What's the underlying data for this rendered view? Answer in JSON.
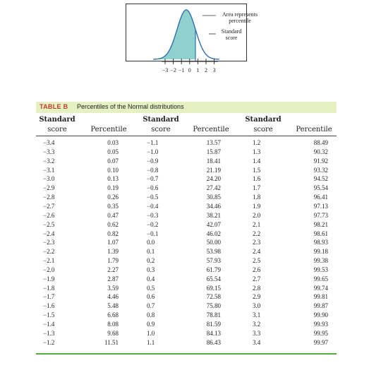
{
  "figure": {
    "annotations": {
      "percentile": [
        "Area represents",
        "percentile"
      ],
      "standard_score": [
        "Standard",
        "score"
      ]
    },
    "tick_labels": [
      "−3",
      "−2",
      "−1",
      "0",
      "1",
      "2",
      "3"
    ],
    "standard_score_marker": 1,
    "colors": {
      "shaded_area": "#8fd1cd",
      "curve": "#2e6fb0",
      "frame": "#333333"
    }
  },
  "table": {
    "label": "TABLE B",
    "title": "Percentiles of the Normal distributions",
    "header_top": "Standard",
    "header_score": "score",
    "header_percentile": "Percentile",
    "colors": {
      "caption_bg": "#e6f0c3",
      "label": "#c0392b",
      "bottom_rule": "#5daa3c"
    },
    "columns": [
      {
        "scores": [
          "−3.4",
          "−3.3",
          "−3.2",
          "−3.1",
          "−3.0",
          "−2.9",
          "−2.8",
          "−2.7",
          "−2.6",
          "−2.5",
          "−2.4",
          "−2.3",
          "−2.2",
          "−2.1",
          "−2.0",
          "−1.9",
          "−1.8",
          "−1.7",
          "−1.6",
          "−1.5",
          "−1.4",
          "−1.3",
          "−1.2"
        ],
        "percentiles": [
          "0.03",
          "0.05",
          "0.07",
          "0.10",
          "0.13",
          "0.19",
          "0.26",
          "0.35",
          "0.47",
          "0.62",
          "0.82",
          "1.07",
          "1.39",
          "1.79",
          "2.27",
          "2.87",
          "3.59",
          "4.46",
          "5.48",
          "6.68",
          "8.08",
          "9.68",
          "11.51"
        ]
      },
      {
        "scores": [
          "−1.1",
          "−1.0",
          "−0.9",
          "−0.8",
          "−0.7",
          "−0.6",
          "−0.5",
          "−0.4",
          "−0.3",
          "−0.2",
          "−0.1",
          "0.0",
          "0.1",
          "0.2",
          "0.3",
          "0.4",
          "0.5",
          "0.6",
          "0.7",
          "0.8",
          "0.9",
          "1.0",
          "1.1"
        ],
        "percentiles": [
          "13.57",
          "15.87",
          "18.41",
          "21.19",
          "24.20",
          "27.42",
          "30.85",
          "34.46",
          "38.21",
          "42.07",
          "46.02",
          "50.00",
          "53.98",
          "57.93",
          "61.79",
          "65.54",
          "69.15",
          "72.58",
          "75.80",
          "78.81",
          "81.59",
          "84.13",
          "86.43"
        ]
      },
      {
        "scores": [
          "1.2",
          "1.3",
          "1.4",
          "1.5",
          "1.6",
          "1.7",
          "1.8",
          "1.9",
          "2.0",
          "2.1",
          "2.2",
          "2.3",
          "2.4",
          "2.5",
          "2.6",
          "2.7",
          "2.8",
          "2.9",
          "3.0",
          "3.1",
          "3.2",
          "3.3",
          "3.4"
        ],
        "percentiles": [
          "88.49",
          "90.32",
          "91.92",
          "93.32",
          "94.52",
          "95.54",
          "96.41",
          "97.13",
          "97.73",
          "98.21",
          "98.61",
          "98.93",
          "99.18",
          "99.38",
          "99.53",
          "99.65",
          "99.74",
          "99.81",
          "99.87",
          "99.90",
          "99.93",
          "99.95",
          "99.97"
        ]
      }
    ]
  }
}
